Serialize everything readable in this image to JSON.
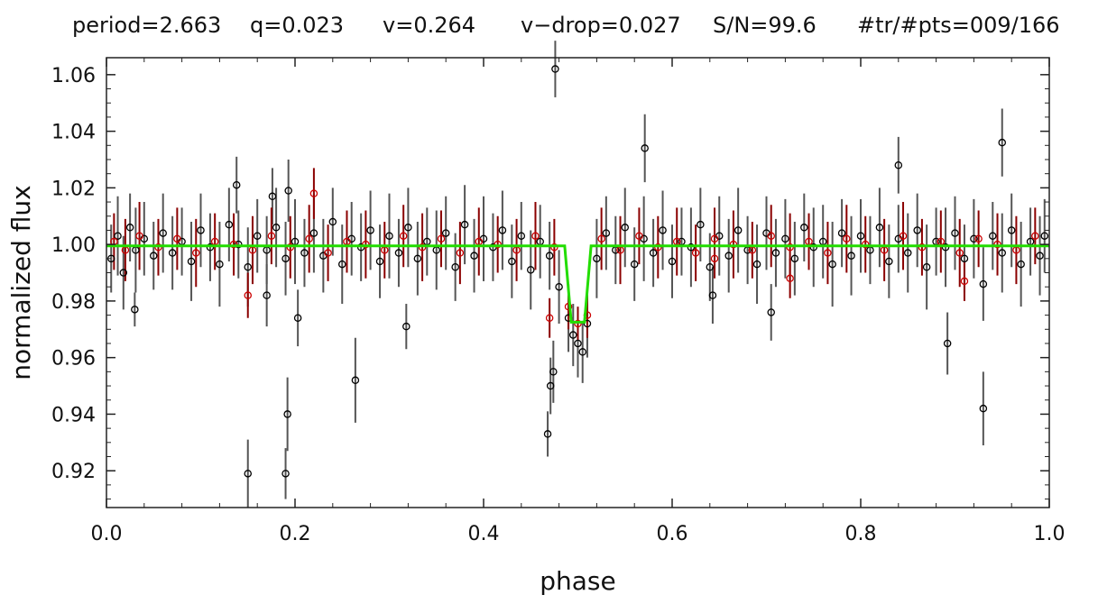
{
  "header": {
    "period": "period=2.663",
    "q": "q=0.023",
    "v": "v=0.264",
    "v_drop": "v−drop=0.027",
    "sn": "S/N=99.6",
    "tr_pts": "#tr/#pts=009/166"
  },
  "chart_data": {
    "type": "scatter",
    "xlabel": "phase",
    "ylabel": "normalized flux",
    "xlim": [
      0.0,
      1.0
    ],
    "ylim": [
      0.907,
      1.066
    ],
    "xticks": [
      "0.0",
      "0.2",
      "0.4",
      "0.6",
      "0.8",
      "1.0"
    ],
    "yticks": [
      "0.92",
      "0.94",
      "0.96",
      "0.98",
      "1.00",
      "1.02",
      "1.04",
      "1.06"
    ],
    "grid": false,
    "legend": "none",
    "series": [
      {
        "kind": "points with vertical error bars",
        "color": "#000000",
        "errorbar_color": "#555555",
        "marker": "open circle",
        "x": [
          0.005,
          0.012,
          0.018,
          0.025,
          0.031,
          0.04,
          0.05,
          0.06,
          0.07,
          0.08,
          0.09,
          0.1,
          0.11,
          0.12,
          0.13,
          0.14,
          0.15,
          0.16,
          0.17,
          0.18,
          0.19,
          0.2,
          0.21,
          0.22,
          0.23,
          0.24,
          0.25,
          0.26,
          0.27,
          0.28,
          0.29,
          0.3,
          0.31,
          0.32,
          0.33,
          0.34,
          0.35,
          0.36,
          0.37,
          0.38,
          0.39,
          0.4,
          0.41,
          0.42,
          0.43,
          0.44,
          0.45,
          0.46,
          0.47,
          0.48,
          0.49,
          0.495,
          0.5,
          0.505,
          0.51,
          0.52,
          0.53,
          0.54,
          0.55,
          0.56,
          0.57,
          0.58,
          0.59,
          0.6,
          0.61,
          0.62,
          0.63,
          0.64,
          0.65,
          0.66,
          0.67,
          0.68,
          0.69,
          0.7,
          0.71,
          0.72,
          0.73,
          0.74,
          0.75,
          0.76,
          0.77,
          0.78,
          0.79,
          0.8,
          0.81,
          0.82,
          0.83,
          0.84,
          0.85,
          0.86,
          0.87,
          0.88,
          0.89,
          0.9,
          0.91,
          0.92,
          0.93,
          0.94,
          0.95,
          0.96,
          0.97,
          0.98,
          0.99,
          0.995,
          0.03,
          0.138,
          0.15,
          0.17,
          0.176,
          0.19,
          0.192,
          0.193,
          0.203,
          0.264,
          0.318,
          0.468,
          0.471,
          0.474,
          0.476,
          0.571,
          0.643,
          0.705,
          0.84,
          0.892,
          0.93,
          0.95
        ],
        "y": [
          0.995,
          1.003,
          0.99,
          1.006,
          0.998,
          1.002,
          0.996,
          1.004,
          0.997,
          1.001,
          0.994,
          1.005,
          0.999,
          0.993,
          1.007,
          1.0,
          0.992,
          1.003,
          0.998,
          1.006,
          0.995,
          1.001,
          0.997,
          1.004,
          0.996,
          1.008,
          0.993,
          1.002,
          0.999,
          1.005,
          0.994,
          1.003,
          0.997,
          1.006,
          0.995,
          1.001,
          0.998,
          1.004,
          0.992,
          1.007,
          0.996,
          1.002,
          0.999,
          1.005,
          0.994,
          1.003,
          0.991,
          1.001,
          0.996,
          0.985,
          0.974,
          0.968,
          0.965,
          0.962,
          0.972,
          0.995,
          1.004,
          0.998,
          1.006,
          0.993,
          1.002,
          0.997,
          1.005,
          0.994,
          1.001,
          0.999,
          1.007,
          0.992,
          1.003,
          0.996,
          1.005,
          0.998,
          0.993,
          1.004,
          0.997,
          1.002,
          0.995,
          1.006,
          0.999,
          1.001,
          0.993,
          1.004,
          0.996,
          1.003,
          0.998,
          1.006,
          0.994,
          1.002,
          0.997,
          1.005,
          0.992,
          1.001,
          0.999,
          1.004,
          0.995,
          1.002,
          0.986,
          1.003,
          0.997,
          1.005,
          0.993,
          1.001,
          0.996,
          1.003,
          0.977,
          1.021,
          0.919,
          0.982,
          1.017,
          0.919,
          0.94,
          1.019,
          0.974,
          0.952,
          0.971,
          0.933,
          0.95,
          0.955,
          1.062,
          1.034,
          0.982,
          0.976,
          1.028,
          0.965,
          0.942,
          1.036
        ],
        "yerr": [
          0.012,
          0.014,
          0.013,
          0.012,
          0.015,
          0.013,
          0.012,
          0.014,
          0.013,
          0.012,
          0.014,
          0.013,
          0.012,
          0.015,
          0.013,
          0.012,
          0.014,
          0.013,
          0.012,
          0.014,
          0.013,
          0.015,
          0.012,
          0.014,
          0.013,
          0.012,
          0.014,
          0.013,
          0.012,
          0.014,
          0.013,
          0.015,
          0.012,
          0.014,
          0.013,
          0.012,
          0.014,
          0.013,
          0.012,
          0.014,
          0.013,
          0.015,
          0.012,
          0.014,
          0.013,
          0.012,
          0.014,
          0.013,
          0.012,
          0.013,
          0.012,
          0.011,
          0.012,
          0.011,
          0.012,
          0.014,
          0.013,
          0.012,
          0.014,
          0.013,
          0.015,
          0.012,
          0.014,
          0.013,
          0.012,
          0.014,
          0.013,
          0.012,
          0.014,
          0.013,
          0.015,
          0.012,
          0.014,
          0.013,
          0.012,
          0.014,
          0.013,
          0.012,
          0.014,
          0.013,
          0.015,
          0.012,
          0.014,
          0.013,
          0.012,
          0.014,
          0.013,
          0.012,
          0.014,
          0.013,
          0.015,
          0.012,
          0.014,
          0.013,
          0.012,
          0.014,
          0.013,
          0.012,
          0.014,
          0.013,
          0.015,
          0.012,
          0.014,
          0.013,
          0.006,
          0.01,
          0.012,
          0.011,
          0.01,
          0.009,
          0.013,
          0.011,
          0.01,
          0.015,
          0.008,
          0.008,
          0.01,
          0.011,
          0.01,
          0.012,
          0.01,
          0.01,
          0.01,
          0.011,
          0.013,
          0.012
        ]
      },
      {
        "kind": "points with vertical error bars",
        "color": "#cc0000",
        "errorbar_color": "#8b0000",
        "marker": "open circle",
        "x": [
          0.008,
          0.02,
          0.035,
          0.055,
          0.075,
          0.095,
          0.115,
          0.135,
          0.155,
          0.175,
          0.195,
          0.215,
          0.235,
          0.255,
          0.275,
          0.295,
          0.315,
          0.335,
          0.355,
          0.375,
          0.395,
          0.415,
          0.435,
          0.455,
          0.475,
          0.49,
          0.5,
          0.51,
          0.525,
          0.545,
          0.565,
          0.585,
          0.605,
          0.625,
          0.645,
          0.665,
          0.685,
          0.705,
          0.725,
          0.745,
          0.765,
          0.785,
          0.805,
          0.825,
          0.845,
          0.865,
          0.885,
          0.905,
          0.925,
          0.945,
          0.965,
          0.985,
          0.22,
          0.15,
          0.47,
          0.645,
          0.725,
          0.91
        ],
        "y": [
          1.001,
          0.998,
          1.003,
          0.999,
          1.002,
          0.997,
          1.001,
          1.0,
          0.998,
          1.003,
          0.999,
          1.002,
          0.997,
          1.001,
          1.0,
          0.998,
          1.003,
          0.999,
          1.002,
          0.997,
          1.001,
          1.0,
          0.998,
          1.003,
          0.999,
          0.978,
          0.972,
          0.975,
          1.002,
          0.998,
          1.003,
          0.999,
          1.001,
          0.997,
          1.002,
          1.0,
          0.998,
          1.003,
          0.999,
          1.001,
          0.997,
          1.002,
          1.0,
          0.998,
          1.003,
          0.999,
          1.001,
          0.997,
          1.002,
          1.0,
          0.998,
          1.003,
          1.018,
          0.982,
          0.974,
          0.995,
          0.988,
          0.987
        ],
        "yerr": [
          0.01,
          0.011,
          0.012,
          0.01,
          0.011,
          0.012,
          0.01,
          0.011,
          0.012,
          0.01,
          0.011,
          0.012,
          0.01,
          0.011,
          0.012,
          0.01,
          0.011,
          0.012,
          0.01,
          0.011,
          0.012,
          0.01,
          0.011,
          0.012,
          0.01,
          0.008,
          0.006,
          0.008,
          0.011,
          0.012,
          0.01,
          0.011,
          0.012,
          0.01,
          0.011,
          0.012,
          0.01,
          0.011,
          0.012,
          0.01,
          0.011,
          0.012,
          0.01,
          0.011,
          0.012,
          0.01,
          0.011,
          0.012,
          0.01,
          0.011,
          0.012,
          0.01,
          0.009,
          0.008,
          0.007,
          0.007,
          0.007,
          0.007
        ]
      },
      {
        "kind": "transit model line",
        "color": "#22dd00",
        "x": [
          0.0,
          0.486,
          0.493,
          0.507,
          0.514,
          1.0
        ],
        "y": [
          0.9995,
          0.9995,
          0.9725,
          0.9725,
          0.9995,
          0.9995
        ]
      }
    ]
  }
}
